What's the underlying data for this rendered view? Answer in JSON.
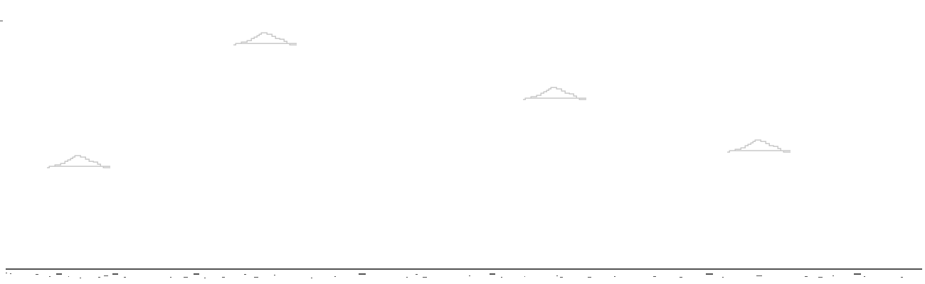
{
  "game": {
    "score_text": "",
    "colors": {
      "background": "#ffffff",
      "ground": "#535353",
      "cloud_outline": "#c9c9c9"
    },
    "icons": {
      "cloud": "cloud-icon",
      "ground": "ground-line"
    }
  }
}
